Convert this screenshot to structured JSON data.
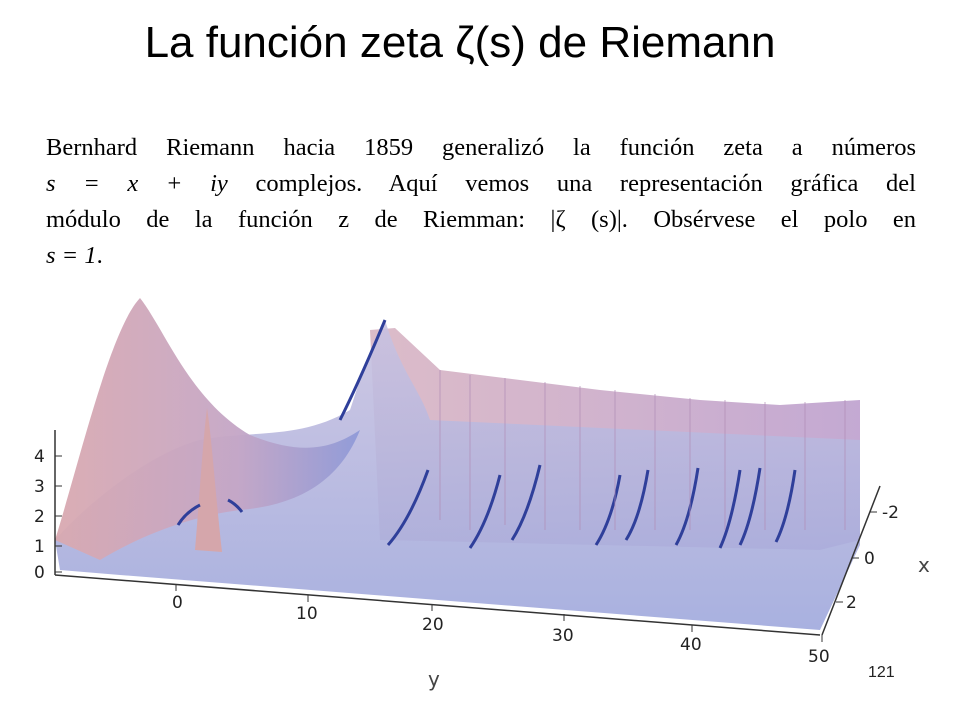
{
  "slide": {
    "title": "La función zeta ζ(s) de Riemann",
    "paragraph": {
      "line1": "Bernhard Riemann hacia 1859 generalizó la función zeta a números",
      "line2_math": "s = x + iy",
      "line2_text": " complejos. Aquí vemos una representación gráfica del",
      "line3": "módulo de la función z de Riemman: |ζ (s)|. Obsérvese el polo en",
      "line4_math": "s = 1",
      "line4_end": "."
    },
    "page_number": "121"
  },
  "figure": {
    "description_type": "3d-surface",
    "surface_color": "#c9a4b8",
    "ridge_color": "#3a4fb0",
    "axes": {
      "z_ticks": [
        "4",
        "3",
        "2",
        "1",
        "0"
      ],
      "y_ticks": [
        "0",
        "10",
        "20",
        "30",
        "40",
        "50"
      ],
      "x_ticks": [
        "-2",
        "0",
        "2"
      ],
      "y_label": "y",
      "x_label": "x"
    }
  }
}
